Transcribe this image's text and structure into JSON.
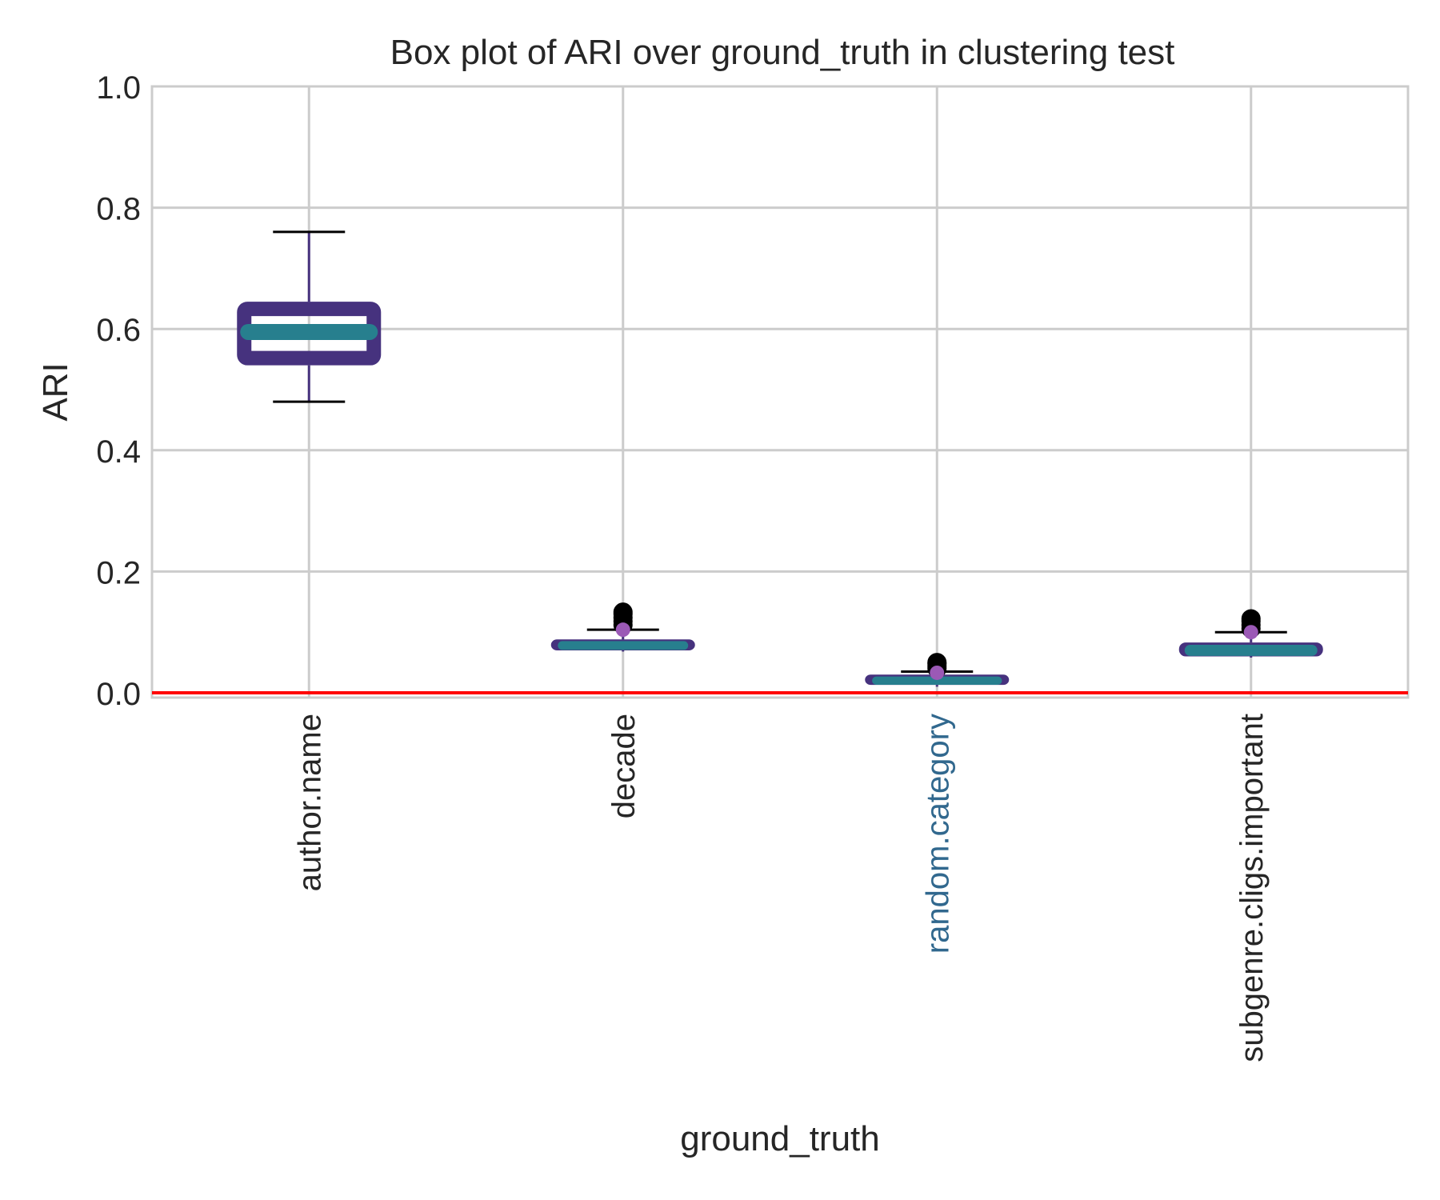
{
  "chart_data": {
    "type": "box",
    "title": "Box plot of ARI over ground_truth in clustering test",
    "xlabel": "ground_truth",
    "ylabel": "ARI",
    "ylim": [
      0.0,
      1.0
    ],
    "yticks": [
      "0.0",
      "0.2",
      "0.4",
      "0.6",
      "0.8",
      "1.0"
    ],
    "ytick_values": [
      0.0,
      0.2,
      0.4,
      0.6,
      0.8,
      1.0
    ],
    "grid": true,
    "reference_line": {
      "y": 0.0,
      "color": "#ff0000"
    },
    "categories": [
      "author.name",
      "decade",
      "random.category",
      "subgenre.cligs.important"
    ],
    "highlighted_category": "random.category",
    "colors": {
      "box": "#46327e",
      "median": "#277f8e",
      "mean": "#9b59b6",
      "whisker_cap": "#000000",
      "highlight_label": "#31688e",
      "grid": "#cccccc"
    },
    "boxes": [
      {
        "category": "author.name",
        "whislo": 0.48,
        "q1": 0.54,
        "median": 0.595,
        "q3": 0.645,
        "whishi": 0.76,
        "mean": null,
        "fliers": []
      },
      {
        "category": "decade",
        "whislo": 0.068,
        "q1": 0.07,
        "median": 0.078,
        "q3": 0.088,
        "whishi": 0.104,
        "mean": 0.104,
        "fliers": [
          0.112,
          0.118,
          0.124,
          0.13,
          0.133
        ]
      },
      {
        "category": "random.category",
        "whislo": 0.01,
        "q1": 0.013,
        "median": 0.02,
        "q3": 0.03,
        "whishi": 0.035,
        "mean": 0.033,
        "fliers": [
          0.04,
          0.044,
          0.048,
          0.05
        ]
      },
      {
        "category": "subgenre.cligs.important",
        "whislo": 0.058,
        "q1": 0.06,
        "median": 0.07,
        "q3": 0.083,
        "whishi": 0.1,
        "mean": 0.1,
        "fliers": [
          0.106,
          0.112,
          0.118,
          0.122
        ]
      }
    ]
  }
}
